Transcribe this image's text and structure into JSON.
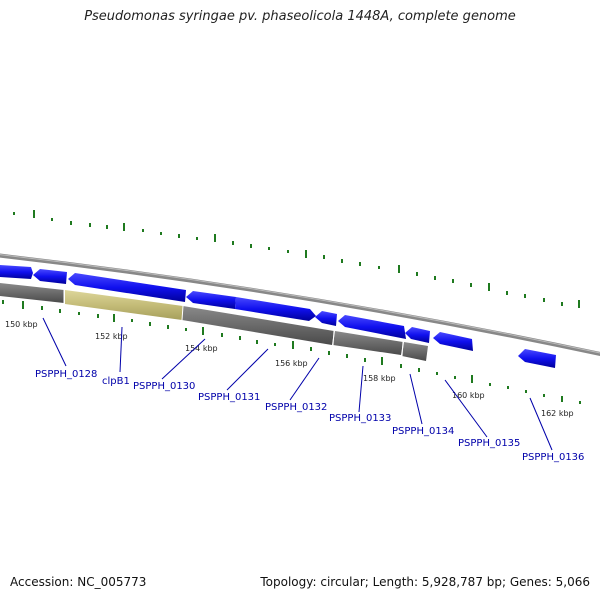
{
  "title": "Pseudomonas syringae pv. phaseolicola 1448A, complete genome",
  "footer": {
    "accession": "Accession: NC_005773",
    "summary": "Topology: circular; Length: 5,928,787 bp; Genes: 5,066"
  },
  "kbp_labels": [
    "150 kbp",
    "152 kbp",
    "154 kbp",
    "156 kbp",
    "158 kbp",
    "160 kbp",
    "162 kbp"
  ],
  "genes": [
    "PSPPH_0128",
    "clpB1",
    "PSPPH_0130",
    "PSPPH_0131",
    "PSPPH_0132",
    "PSPPH_0133",
    "PSPPH_0134",
    "PSPPH_0135",
    "PSPPH_0136"
  ],
  "colors": {
    "cds": "#1010ee",
    "highlight": "#c8c080",
    "feature_track": "#6e6e6e",
    "backbone": "#9a9a9a",
    "gc_ticks": "#1f7a1f",
    "label": "#0000aa"
  }
}
